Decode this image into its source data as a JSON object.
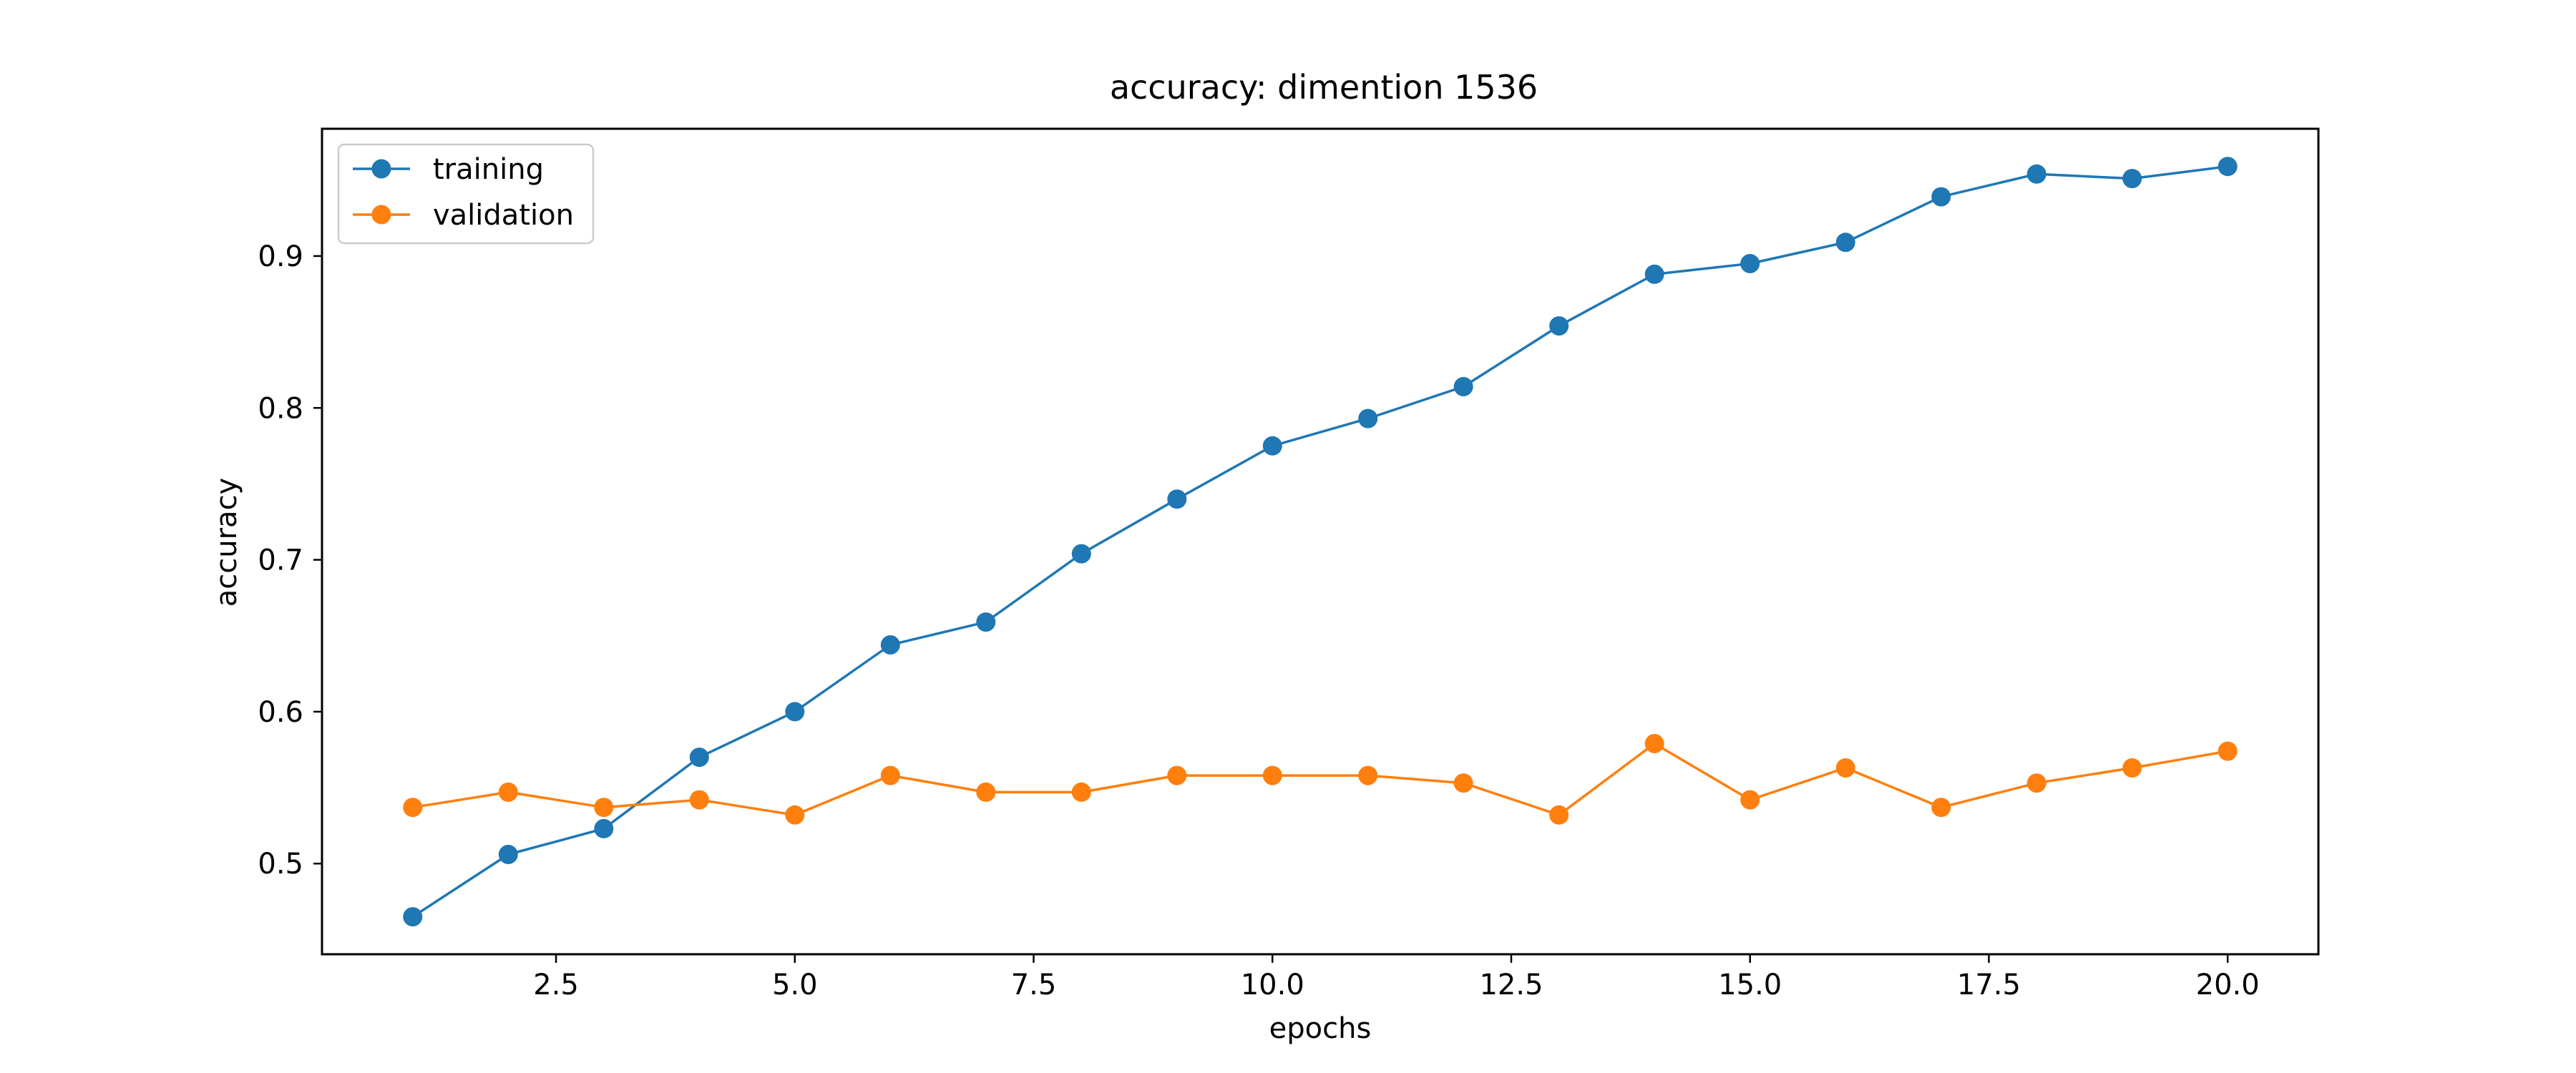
{
  "chart_data": {
    "type": "line",
    "title": "accuracy: dimention 1536",
    "xlabel": "epochs",
    "ylabel": "accuracy",
    "x": [
      1,
      2,
      3,
      4,
      5,
      6,
      7,
      8,
      9,
      10,
      11,
      12,
      13,
      14,
      15,
      16,
      17,
      18,
      19,
      20
    ],
    "series": [
      {
        "name": "training",
        "color": "#1f77b4",
        "marker": "circle",
        "values": [
          0.465,
          0.506,
          0.523,
          0.57,
          0.6,
          0.644,
          0.659,
          0.704,
          0.74,
          0.775,
          0.793,
          0.814,
          0.854,
          0.888,
          0.895,
          0.909,
          0.939,
          0.954,
          0.951,
          0.959
        ]
      },
      {
        "name": "validation",
        "color": "#ff7f0e",
        "marker": "circle",
        "values": [
          0.537,
          0.547,
          0.537,
          0.542,
          0.532,
          0.558,
          0.547,
          0.547,
          0.558,
          0.558,
          0.558,
          0.553,
          0.532,
          0.579,
          0.542,
          0.563,
          0.537,
          0.553,
          0.563,
          0.574
        ]
      }
    ],
    "xlim": [
      0.05,
      20.95
    ],
    "ylim": [
      0.4403,
      0.9838
    ],
    "xticks": [
      "2.5",
      "5.0",
      "7.5",
      "10.0",
      "12.5",
      "15.0",
      "17.5",
      "20.0"
    ],
    "yticks": [
      "0.5",
      "0.6",
      "0.7",
      "0.8",
      "0.9"
    ],
    "grid": false,
    "legend": {
      "position": "top-left",
      "entries": [
        "training",
        "validation"
      ]
    }
  }
}
